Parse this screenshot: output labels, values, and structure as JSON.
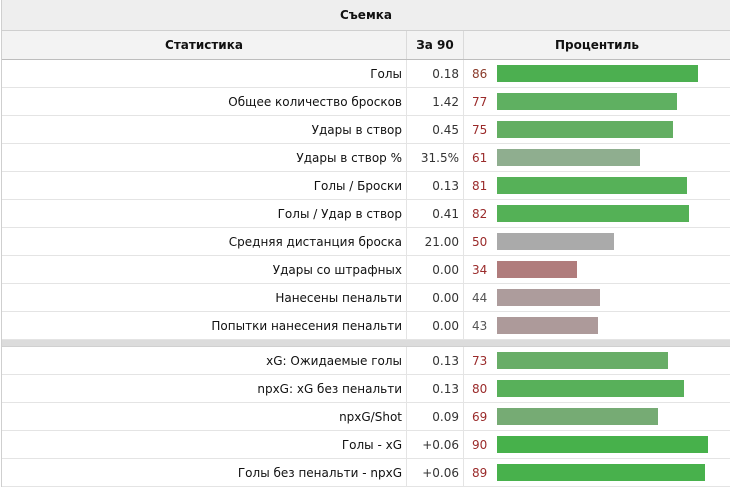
{
  "title": "Съемка",
  "headers": {
    "stat": "Статистика",
    "per90": "За 90",
    "percentile": "Процентиль"
  },
  "colors": {
    "green_high": "#4caf50",
    "red_low": "#b07878"
  },
  "group1": [
    {
      "stat": "Голы",
      "per90": "0.18",
      "pct": "86",
      "pct_value": 86,
      "pct_color": "#8a3a2a",
      "bar_color": "#4caf50"
    },
    {
      "stat": "Общее количество бросков",
      "per90": "1.42",
      "pct": "77",
      "pct_value": 77,
      "pct_color": "#9a2a2a",
      "bar_color": "#5fb061"
    },
    {
      "stat": "Удары в створ",
      "per90": "0.45",
      "pct": "75",
      "pct_value": 75,
      "pct_color": "#9a2a2a",
      "bar_color": "#63ae62"
    },
    {
      "stat": "Удары в створ %",
      "per90": "31.5%",
      "pct": "61",
      "pct_value": 61,
      "pct_color": "#9a2a2a",
      "bar_color": "#8fae8f"
    },
    {
      "stat": "Голы / Броски",
      "per90": "0.13",
      "pct": "81",
      "pct_value": 81,
      "pct_color": "#9a2a2a",
      "bar_color": "#56b158"
    },
    {
      "stat": "Голы / Удар в створ",
      "per90": "0.41",
      "pct": "82",
      "pct_value": 82,
      "pct_color": "#9a2a2a",
      "bar_color": "#54b156"
    },
    {
      "stat": "Средняя дистанция броска",
      "per90": "21.00",
      "pct": "50",
      "pct_value": 50,
      "pct_color": "#9a2a2a",
      "bar_color": "#aaaaaa"
    },
    {
      "stat": "Удары со штрафных",
      "per90": "0.00",
      "pct": "34",
      "pct_value": 34,
      "pct_color": "#9a2a2a",
      "bar_color": "#b07c7c"
    },
    {
      "stat": "Нанесены пенальти",
      "per90": "0.00",
      "pct": "44",
      "pct_value": 44,
      "pct_color": "#555555",
      "bar_color": "#ad9c9c"
    },
    {
      "stat": "Попытки нанесения пенальти",
      "per90": "0.00",
      "pct": "43",
      "pct_value": 43,
      "pct_color": "#555555",
      "bar_color": "#ad9a9a"
    }
  ],
  "group2": [
    {
      "stat": "xG: Ожидаемые голы",
      "per90": "0.13",
      "pct": "73",
      "pct_value": 73,
      "pct_color": "#9a2a2a",
      "bar_color": "#68ad67"
    },
    {
      "stat": "npxG: xG без пенальти",
      "per90": "0.13",
      "pct": "80",
      "pct_value": 80,
      "pct_color": "#9a2a2a",
      "bar_color": "#58b05a"
    },
    {
      "stat": "npxG/Shot",
      "per90": "0.09",
      "pct": "69",
      "pct_value": 69,
      "pct_color": "#9a2a2a",
      "bar_color": "#76ab74"
    },
    {
      "stat": "Голы - xG",
      "per90": "+0.06",
      "pct": "90",
      "pct_value": 90,
      "pct_color": "#9a2a2a",
      "bar_color": "#47b14b"
    },
    {
      "stat": "Голы без пенальти - npxG",
      "per90": "+0.06",
      "pct": "89",
      "pct_value": 89,
      "pct_color": "#9a2a2a",
      "bar_color": "#48b14c"
    }
  ]
}
